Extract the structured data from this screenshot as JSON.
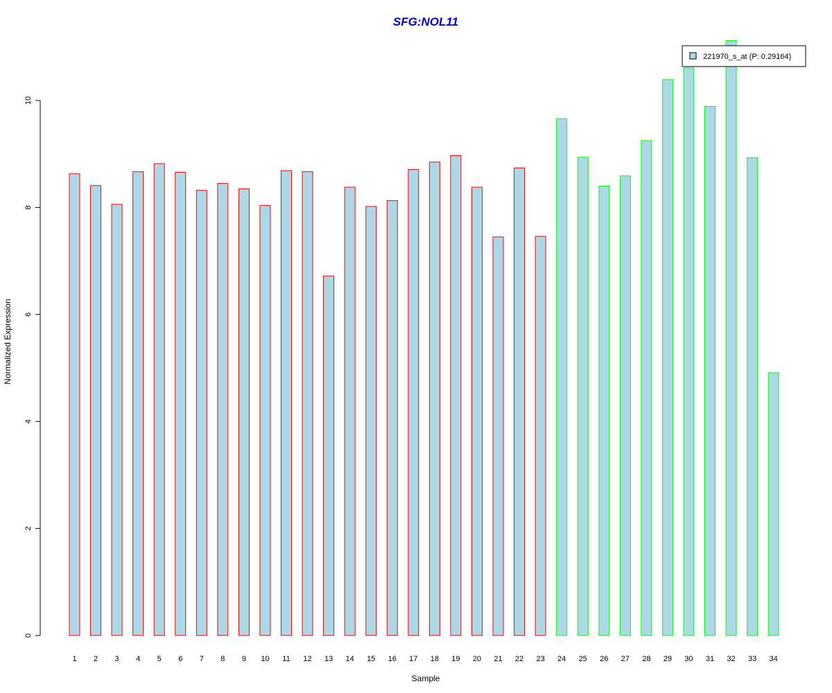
{
  "chart_data": {
    "type": "bar",
    "title": "SFG:NOL11",
    "xlabel": "Sample",
    "ylabel": "Normalized Expression",
    "ylim": [
      0,
      11.2
    ],
    "yticks": [
      0,
      2,
      4,
      6,
      8,
      10
    ],
    "categories": [
      "1",
      "2",
      "3",
      "4",
      "5",
      "6",
      "7",
      "8",
      "9",
      "10",
      "11",
      "12",
      "13",
      "14",
      "15",
      "16",
      "17",
      "18",
      "19",
      "20",
      "21",
      "22",
      "23",
      "24",
      "25",
      "26",
      "27",
      "28",
      "29",
      "30",
      "31",
      "32",
      "33",
      "34"
    ],
    "series": [
      {
        "name": "221970_s_at (P: 0.29164)",
        "values": [
          8.63,
          8.41,
          8.06,
          8.67,
          8.82,
          8.66,
          8.32,
          8.45,
          8.35,
          8.04,
          8.69,
          8.67,
          6.72,
          8.38,
          8.02,
          8.13,
          8.71,
          8.85,
          8.97,
          8.38,
          7.45,
          8.74,
          7.46,
          9.66,
          8.94,
          8.4,
          8.59,
          9.25,
          10.39,
          10.61,
          9.89,
          11.12,
          8.93,
          4.91
        ]
      }
    ],
    "groups": [
      1,
      1,
      1,
      1,
      1,
      1,
      1,
      1,
      1,
      1,
      1,
      1,
      1,
      1,
      1,
      1,
      1,
      1,
      1,
      1,
      1,
      1,
      1,
      2,
      2,
      2,
      2,
      2,
      2,
      2,
      2,
      2,
      2,
      2
    ],
    "colors": {
      "bar_fill": "#add8e6",
      "group1_border": "#ff0000",
      "group2_border": "#00ff00",
      "title": "#0000cc"
    },
    "legend_placement": "top-right",
    "grid": false
  }
}
